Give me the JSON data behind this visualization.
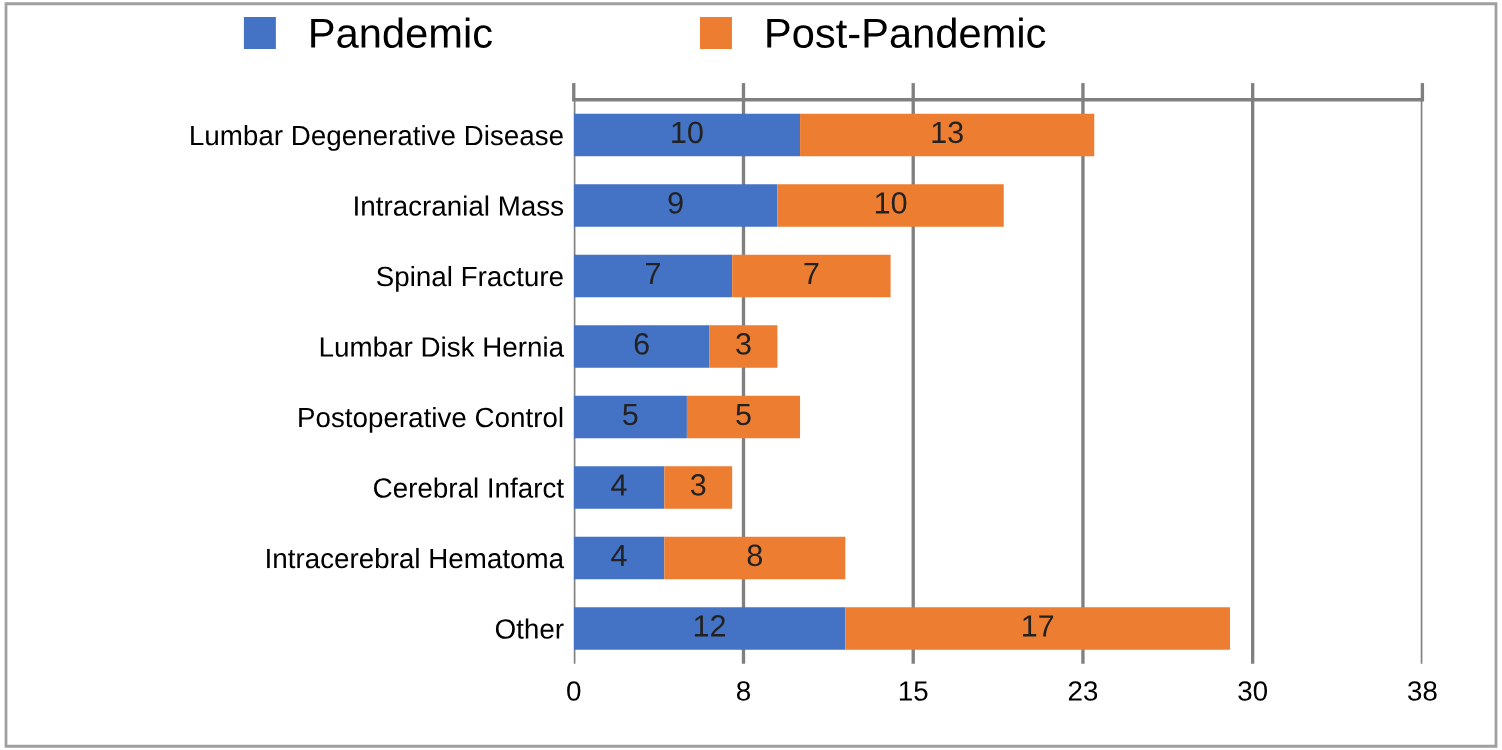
{
  "chart_data": {
    "type": "bar",
    "orientation": "horizontal",
    "stacked": true,
    "categories": [
      "Lumbar Degenerative Disease",
      "Intracranial Mass",
      "Spinal Fracture",
      "Lumbar Disk Hernia",
      "Postoperative Control",
      "Cerebral Infarct",
      "Intracerebral Hematoma",
      "Other"
    ],
    "series": [
      {
        "name": "Pandemic",
        "color": "#4472c4",
        "values": [
          10,
          9,
          7,
          6,
          5,
          4,
          4,
          12
        ]
      },
      {
        "name": "Post-Pandemic",
        "color": "#ed7d31",
        "values": [
          13,
          10,
          7,
          3,
          5,
          3,
          8,
          17
        ]
      }
    ],
    "xlim": [
      0,
      37.5
    ],
    "xticks": [
      0,
      {
        "value": 7.5,
        "label": "8"
      },
      15,
      {
        "value": 22.5,
        "label": "23"
      },
      30,
      {
        "value": 37.5,
        "label": "38"
      }
    ],
    "grid": "x",
    "legend": "top",
    "data_labels": true
  }
}
